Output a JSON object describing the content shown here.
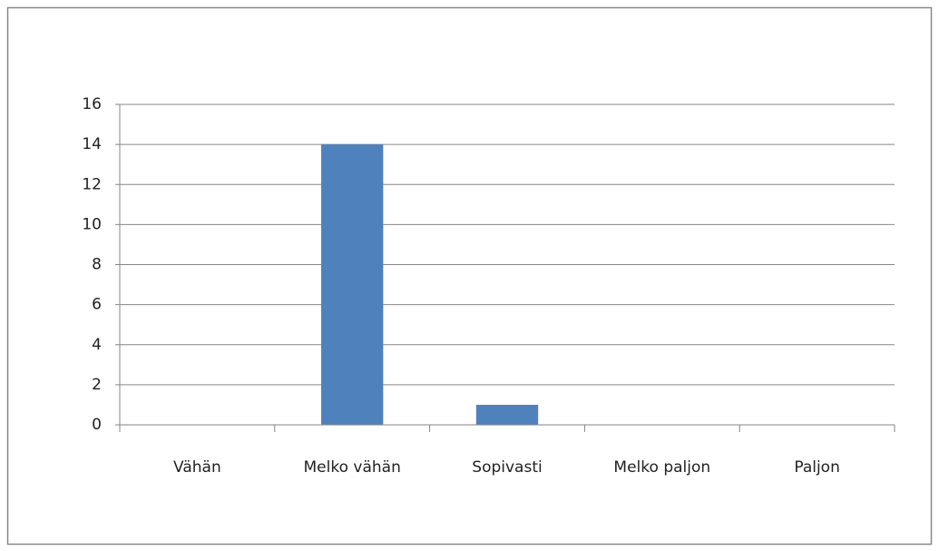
{
  "chart_data": {
    "type": "bar",
    "categories": [
      "Vähän",
      "Melko vähän",
      "Sopivasti",
      "Melko paljon",
      "Paljon"
    ],
    "values": [
      0,
      14,
      1,
      0,
      0
    ],
    "color": "#4f81bd",
    "ylim": [
      0,
      16
    ],
    "yticks": [
      0,
      2,
      4,
      6,
      8,
      10,
      12,
      14,
      16
    ],
    "grid": true
  }
}
